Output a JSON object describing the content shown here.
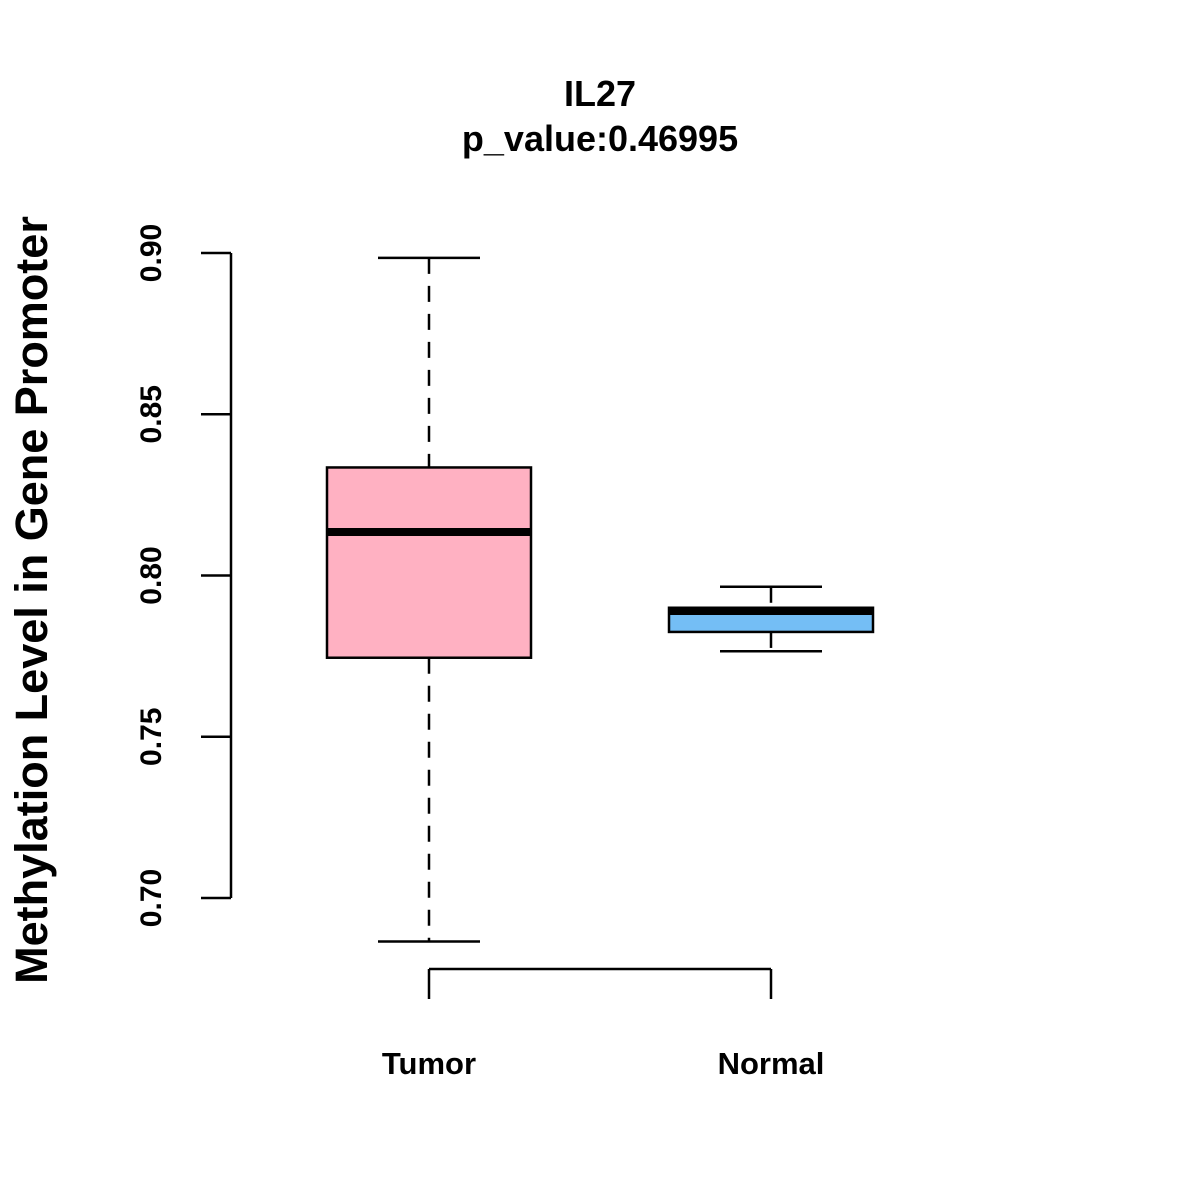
{
  "chart_data": {
    "type": "boxplot",
    "title": "IL27",
    "subtitle": "p_value:0.46995",
    "xlabel": "",
    "ylabel": "Methylation Level in Gene Promoter",
    "ylim": [
      0.7,
      0.9
    ],
    "yticks": [
      0.7,
      0.75,
      0.8,
      0.85,
      0.9
    ],
    "ytick_labels": [
      "0.70",
      "0.75",
      "0.80",
      "0.85",
      "0.90"
    ],
    "grid": false,
    "categories": [
      "Tumor",
      "Normal"
    ],
    "boxes": [
      {
        "name": "Tumor",
        "min": 0.6865,
        "q1": 0.7745,
        "median": 0.8135,
        "q3": 0.8335,
        "max": 0.8985,
        "color": "#FFB1C2"
      },
      {
        "name": "Normal",
        "min": 0.7765,
        "q1": 0.7825,
        "median": 0.789,
        "q3": 0.79,
        "max": 0.7965,
        "color": "#74BEF5"
      }
    ]
  }
}
